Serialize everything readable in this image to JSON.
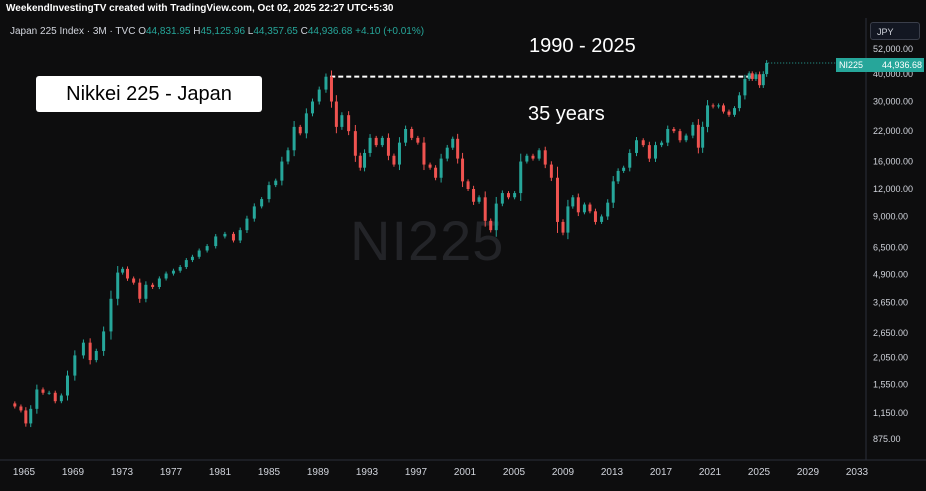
{
  "header": {
    "credit": "WeekendInvestingTV created with TradingView.com, Oct 02, 2025 22:27 UTC+5:30",
    "legend_title": "Japan 225 Index · 3M · TVC",
    "open_label": "O",
    "open": "44,831.95",
    "high_label": "H",
    "high": "45,125.96",
    "low_label": "L",
    "low": "44,357.65",
    "close_label": "C",
    "close": "44,936.68",
    "change": "+4.10 (+0.01%)"
  },
  "currency_button": "JPY",
  "annotations": {
    "title_box": "Nikkei 225 - Japan",
    "period": "1990 - 2025",
    "duration": "35 years"
  },
  "watermark": "NI225",
  "price_tag": {
    "symbol": "NI225",
    "value": "44,936.68"
  },
  "colors": {
    "up": "#26a69a",
    "down": "#ef5350",
    "background": "#0d0d0e",
    "axis_text": "#d1d4dc",
    "dashed_line": "#ffffff"
  },
  "chart_data": {
    "type": "line",
    "title": "",
    "scale": "log",
    "xlim": [
      1964,
      2033
    ],
    "ylim": [
      780,
      60000
    ],
    "x_ticks": [
      "1965",
      "1969",
      "1973",
      "1977",
      "1981",
      "1985",
      "1989",
      "1993",
      "1997",
      "2001",
      "2005",
      "2009",
      "2013",
      "2017",
      "2021",
      "2025",
      "2029",
      "2033"
    ],
    "y_ticks": [
      {
        "value": 52000,
        "label": "52,000.00"
      },
      {
        "value": 40000,
        "label": "40,000.00"
      },
      {
        "value": 30000,
        "label": "30,000.00"
      },
      {
        "value": 22000,
        "label": "22,000.00"
      },
      {
        "value": 16000,
        "label": "16,000.00"
      },
      {
        "value": 12000,
        "label": "12,000.00"
      },
      {
        "value": 9000,
        "label": "9,000.00"
      },
      {
        "value": 6500,
        "label": "6,500.00"
      },
      {
        "value": 4900,
        "label": "4,900.00"
      },
      {
        "value": 3650,
        "label": "3,650.00"
      },
      {
        "value": 2650,
        "label": "2,650.00"
      },
      {
        "value": 2050,
        "label": "2,050.00"
      },
      {
        "value": 1550,
        "label": "1,550.00"
      },
      {
        "value": 1150,
        "label": "1,150.00"
      },
      {
        "value": 875,
        "label": "875.00"
      }
    ],
    "reference_line": {
      "value": 38916,
      "x_start": 1990.0,
      "x_end": 2024.6
    },
    "series": [
      {
        "values": [
          [
            1964.0,
            1270
          ],
          [
            1964.5,
            1230
          ],
          [
            1965.0,
            1180
          ],
          [
            1965.3,
            1030
          ],
          [
            1965.8,
            1200
          ],
          [
            1966.3,
            1470
          ],
          [
            1966.8,
            1420
          ],
          [
            1967.3,
            1420
          ],
          [
            1967.8,
            1300
          ],
          [
            1968.3,
            1380
          ],
          [
            1968.8,
            1700
          ],
          [
            1969.5,
            2100
          ],
          [
            1970.2,
            2400
          ],
          [
            1970.6,
            2000
          ],
          [
            1971.2,
            2200
          ],
          [
            1971.8,
            2700
          ],
          [
            1972.4,
            3800
          ],
          [
            1972.9,
            5000
          ],
          [
            1973.2,
            5200
          ],
          [
            1973.7,
            4700
          ],
          [
            1974.2,
            4500
          ],
          [
            1974.7,
            3800
          ],
          [
            1975.2,
            4400
          ],
          [
            1975.8,
            4300
          ],
          [
            1976.3,
            4700
          ],
          [
            1976.9,
            4950
          ],
          [
            1977.5,
            5100
          ],
          [
            1978.0,
            5300
          ],
          [
            1978.5,
            5700
          ],
          [
            1979.0,
            5900
          ],
          [
            1979.6,
            6300
          ],
          [
            1980.3,
            6600
          ],
          [
            1981.0,
            7300
          ],
          [
            1981.8,
            7500
          ],
          [
            1982.4,
            7000
          ],
          [
            1982.9,
            7800
          ],
          [
            1983.5,
            8800
          ],
          [
            1984.1,
            10000
          ],
          [
            1984.7,
            10800
          ],
          [
            1985.3,
            12500
          ],
          [
            1985.8,
            13100
          ],
          [
            1986.3,
            16000
          ],
          [
            1986.8,
            18000
          ],
          [
            1987.3,
            23000
          ],
          [
            1987.8,
            21500
          ],
          [
            1988.3,
            26500
          ],
          [
            1988.8,
            30000
          ],
          [
            1989.4,
            34000
          ],
          [
            1989.9,
            38900
          ],
          [
            1990.3,
            30000
          ],
          [
            1990.7,
            23000
          ],
          [
            1991.2,
            26000
          ],
          [
            1991.8,
            22000
          ],
          [
            1992.3,
            17000
          ],
          [
            1992.6,
            15000
          ],
          [
            1993.0,
            17500
          ],
          [
            1993.5,
            20500
          ],
          [
            1994.0,
            19000
          ],
          [
            1994.5,
            20500
          ],
          [
            1995.0,
            17000
          ],
          [
            1995.4,
            15500
          ],
          [
            1995.9,
            19500
          ],
          [
            1996.4,
            22500
          ],
          [
            1996.9,
            20500
          ],
          [
            1997.4,
            19500
          ],
          [
            1997.9,
            15500
          ],
          [
            1998.4,
            15000
          ],
          [
            1998.8,
            13500
          ],
          [
            1999.3,
            16500
          ],
          [
            1999.8,
            18500
          ],
          [
            2000.2,
            20300
          ],
          [
            2000.6,
            16500
          ],
          [
            2001.0,
            13000
          ],
          [
            2001.5,
            12000
          ],
          [
            2001.9,
            10500
          ],
          [
            2002.4,
            11000
          ],
          [
            2002.9,
            8600
          ],
          [
            2003.3,
            7800
          ],
          [
            2003.8,
            10300
          ],
          [
            2004.3,
            11500
          ],
          [
            2004.8,
            11000
          ],
          [
            2005.3,
            11500
          ],
          [
            2005.8,
            16000
          ],
          [
            2006.3,
            17000
          ],
          [
            2006.8,
            16500
          ],
          [
            2007.3,
            18000
          ],
          [
            2007.8,
            15500
          ],
          [
            2008.3,
            13500
          ],
          [
            2008.8,
            8500
          ],
          [
            2009.2,
            7600
          ],
          [
            2009.6,
            10000
          ],
          [
            2010.0,
            11000
          ],
          [
            2010.5,
            9400
          ],
          [
            2011.0,
            10200
          ],
          [
            2011.4,
            9500
          ],
          [
            2011.9,
            8500
          ],
          [
            2012.4,
            9000
          ],
          [
            2012.9,
            10400
          ],
          [
            2013.3,
            13000
          ],
          [
            2013.7,
            14500
          ],
          [
            2014.2,
            15000
          ],
          [
            2014.7,
            17500
          ],
          [
            2015.3,
            20000
          ],
          [
            2015.8,
            19000
          ],
          [
            2016.3,
            16500
          ],
          [
            2016.8,
            19000
          ],
          [
            2017.3,
            19500
          ],
          [
            2017.8,
            22500
          ],
          [
            2018.3,
            22000
          ],
          [
            2018.8,
            20000
          ],
          [
            2019.3,
            21000
          ],
          [
            2019.9,
            23500
          ],
          [
            2020.2,
            18500
          ],
          [
            2020.6,
            23000
          ],
          [
            2021.0,
            28800
          ],
          [
            2021.5,
            28500
          ],
          [
            2021.9,
            28800
          ],
          [
            2022.3,
            27000
          ],
          [
            2022.8,
            26100
          ],
          [
            2023.2,
            28000
          ],
          [
            2023.6,
            32000
          ],
          [
            2024.1,
            38000
          ],
          [
            2024.3,
            40300
          ],
          [
            2024.6,
            38000
          ],
          [
            2024.9,
            39900
          ],
          [
            2025.2,
            35600
          ],
          [
            2025.5,
            40000
          ],
          [
            2025.75,
            44937
          ]
        ]
      }
    ]
  }
}
